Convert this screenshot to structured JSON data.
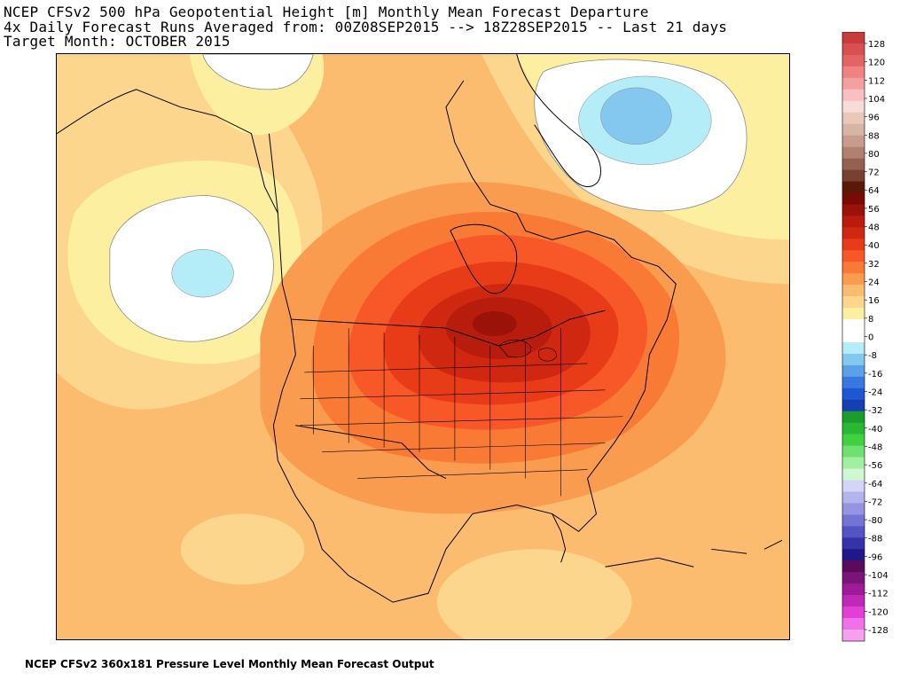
{
  "title": {
    "line1": "NCEP CFSv2 500 hPa Geopotential Height [m] Monthly Mean Forecast Departure",
    "line2": "4x Daily Forecast Runs Averaged from: 00Z08SEP2015 --> 18Z28SEP2015 -- Last 21 days",
    "line3": "Target Month: OCTOBER 2015"
  },
  "footer": "NCEP CFSv2 360x181 Pressure Level Monthly Mean Forecast Output",
  "colorbar": {
    "labels": [
      "128",
      "120",
      "112",
      "104",
      "96",
      "88",
      "80",
      "72",
      "64",
      "56",
      "48",
      "40",
      "32",
      "24",
      "16",
      "8",
      "0",
      "-8",
      "-16",
      "-24",
      "-32",
      "-40",
      "-48",
      "-56",
      "-64",
      "-72",
      "-80",
      "-88",
      "-96",
      "-104",
      "-112",
      "-120",
      "-128"
    ],
    "colors": [
      "#c83c3c",
      "#d85050",
      "#e46464",
      "#f08282",
      "#f4a0a0",
      "#f8c0c0",
      "#f8dcd8",
      "#e8c8b8",
      "#d8b4a4",
      "#c89c8c",
      "#b08070",
      "#946050",
      "#784030",
      "#5a1808",
      "#780c04",
      "#9a1208",
      "#b81c0c",
      "#d02810",
      "#e83c18",
      "#f85828",
      "#f87a34",
      "#fa9c50",
      "#fcbc70",
      "#fcd68c",
      "#fcf0a0",
      "#ffffff",
      "#ffffff",
      "#b4ecf8",
      "#84c8f0",
      "#5ca0e8",
      "#3878e0",
      "#1e58d0",
      "#1440b4",
      "#1c9c2c",
      "#28b834",
      "#40d040",
      "#70e070",
      "#a0f0a0",
      "#d0f8d0",
      "#d4d4f4",
      "#b4b4ec",
      "#9494e0",
      "#7474d4",
      "#5454c4",
      "#3434a8",
      "#201888",
      "#5a0c5a",
      "#7a1478",
      "#9c1c98",
      "#c028b8",
      "#e040d8",
      "#f070e8",
      "#f8a0f0"
    ]
  },
  "map": {
    "anomaly_regions": [
      {
        "level": 8,
        "desc": "background positive anomaly"
      },
      {
        "level": 56,
        "desc": "maximum centered over Ontario / Great Lakes"
      },
      {
        "level": -16,
        "desc": "negative anomaly over Greenland"
      },
      {
        "level": -8,
        "desc": "negative anomaly over NE Pacific"
      }
    ]
  }
}
